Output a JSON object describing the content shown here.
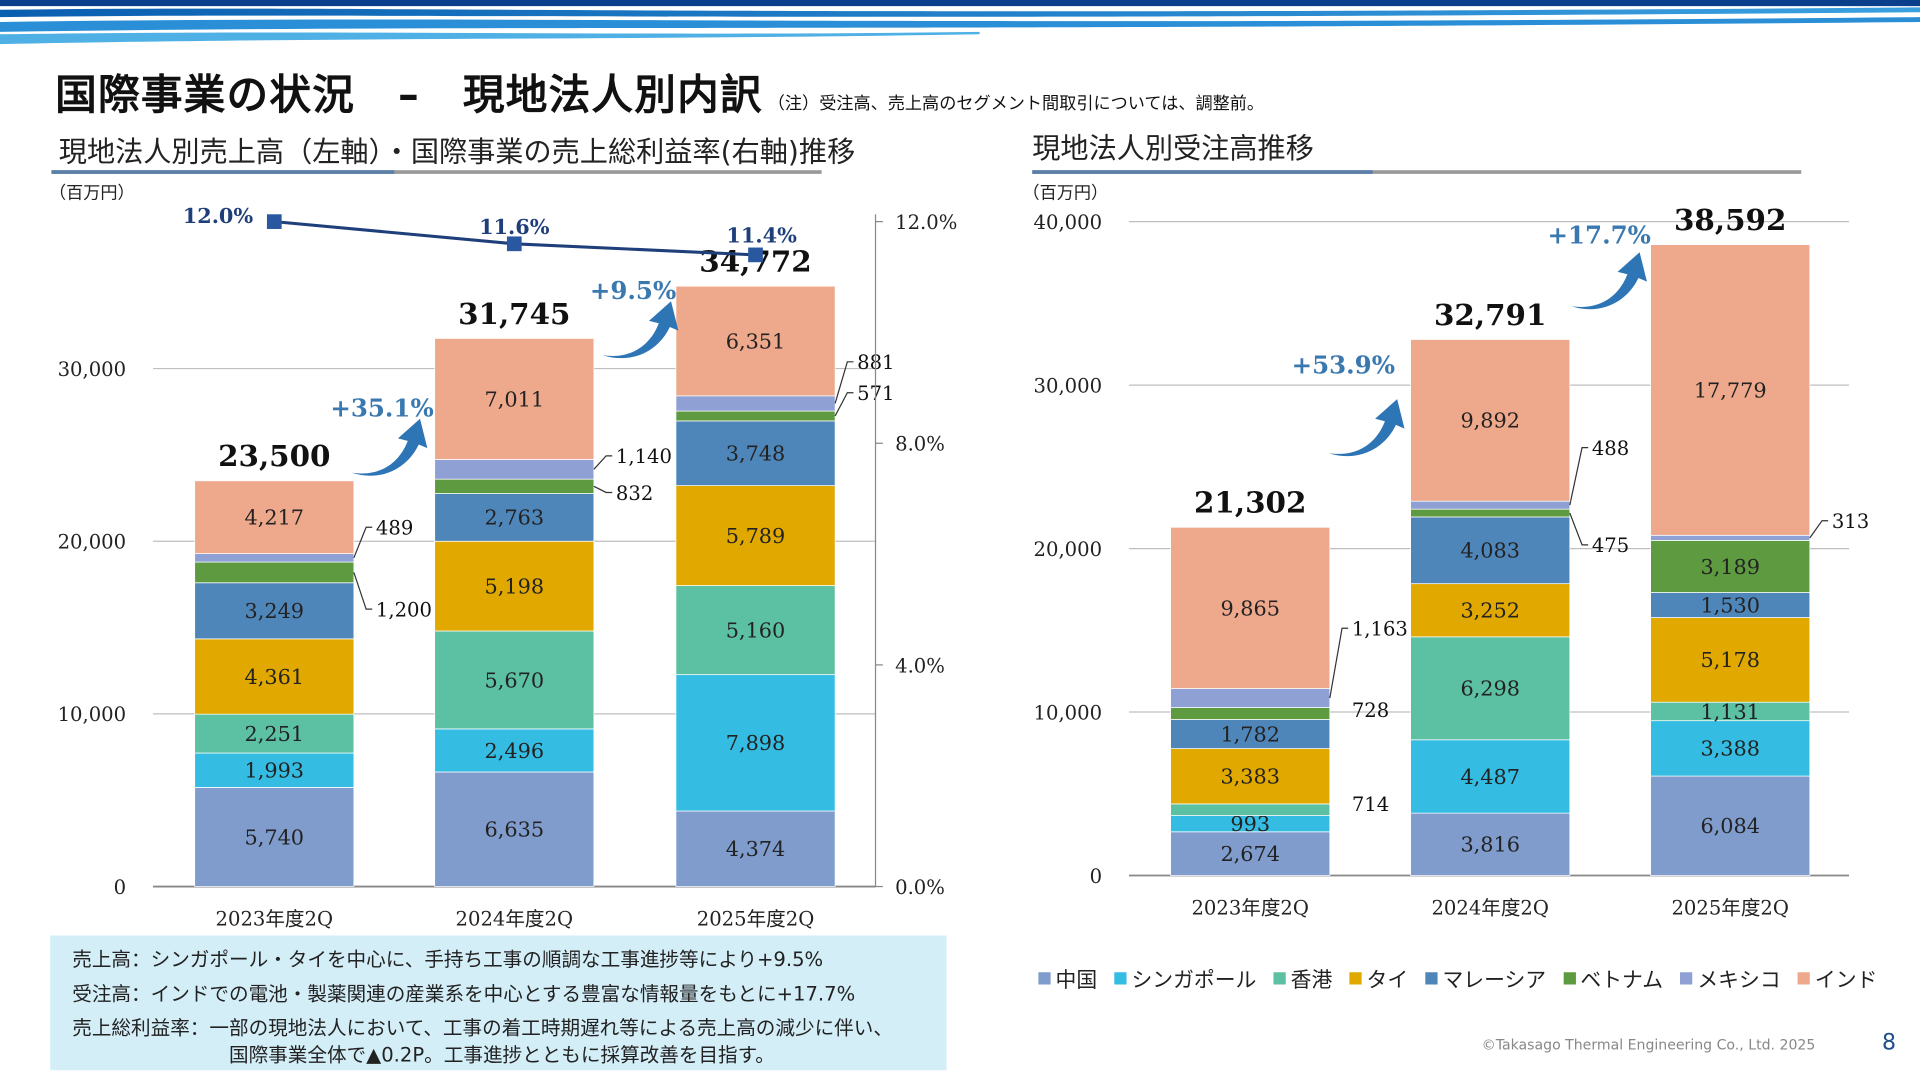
{
  "header": {
    "title": "国際事業の状況　–　現地法人別内訳",
    "note": "（注）受注高、売上高のセグメント間取引については、調整前。"
  },
  "left_panel": {
    "subtitle": "現地法人別売上高（左軸）・国際事業の売上総利益率(右軸)推移",
    "unit": "（百万円）"
  },
  "right_panel": {
    "subtitle": "現地法人別受注高推移",
    "unit": "（百万円）"
  },
  "colors": {
    "中国": "#7f9ccc",
    "シンガポール": "#35bce2",
    "香港": "#5cc0a2",
    "タイ": "#e1a800",
    "マレーシア": "#4f86b9",
    "ベトナム": "#5e9a40",
    "メキシコ": "#8fa0d4",
    "インド": "#eea88c",
    "line": "#1f3f7a",
    "growth": "#2e75b6"
  },
  "chart_data": [
    {
      "type": "bar",
      "stacked": true,
      "title": "現地法人別売上高（左軸）・国際事業の売上総利益率(右軸)推移",
      "categories": [
        "2023年度2Q",
        "2024年度2Q",
        "2025年度2Q"
      ],
      "ylabel": "（百万円）",
      "ylim": [
        0,
        30000
      ],
      "yticks": [
        "0",
        "10,000",
        "20,000",
        "30,000"
      ],
      "y2lim": [
        0,
        12
      ],
      "y2ticks": [
        "0.0%",
        "4.0%",
        "8.0%",
        "12.0%"
      ],
      "series": [
        {
          "name": "中国",
          "values": [
            5740,
            6635,
            4374
          ]
        },
        {
          "name": "シンガポール",
          "values": [
            1993,
            2496,
            7898
          ]
        },
        {
          "name": "香港",
          "values": [
            2251,
            5670,
            5160
          ]
        },
        {
          "name": "タイ",
          "values": [
            4361,
            5198,
            5789
          ]
        },
        {
          "name": "マレーシア",
          "values": [
            3249,
            2763,
            3748
          ]
        },
        {
          "name": "ベトナム",
          "values": [
            1200,
            832,
            571
          ]
        },
        {
          "name": "メキシコ",
          "values": [
            489,
            1140,
            881
          ]
        },
        {
          "name": "インド",
          "values": [
            4217,
            7011,
            6351
          ]
        }
      ],
      "totals": [
        "23,500",
        "31,745",
        "34,772"
      ],
      "growth": [
        "+35.1%",
        "+9.5%"
      ],
      "line": {
        "name": "売上総利益率",
        "values": [
          12.0,
          11.6,
          11.4
        ],
        "labels": [
          "12.0%",
          "11.6%",
          "11.4%"
        ]
      }
    },
    {
      "type": "bar",
      "stacked": true,
      "title": "現地法人別受注高推移",
      "categories": [
        "2023年度2Q",
        "2024年度2Q",
        "2025年度2Q"
      ],
      "ylabel": "（百万円）",
      "ylim": [
        0,
        40000
      ],
      "yticks": [
        "0",
        "10,000",
        "20,000",
        "30,000",
        "40,000"
      ],
      "series": [
        {
          "name": "中国",
          "values": [
            2674,
            3816,
            6084
          ]
        },
        {
          "name": "シンガポール",
          "values": [
            993,
            4487,
            3388
          ]
        },
        {
          "name": "香港",
          "values": [
            714,
            6298,
            1131
          ]
        },
        {
          "name": "タイ",
          "values": [
            3383,
            3252,
            5178
          ]
        },
        {
          "name": "マレーシア",
          "values": [
            1782,
            4083,
            1530
          ]
        },
        {
          "name": "ベトナム",
          "values": [
            728,
            475,
            3189
          ]
        },
        {
          "name": "メキシコ",
          "values": [
            1163,
            488,
            313
          ]
        },
        {
          "name": "インド",
          "values": [
            9865,
            9892,
            17779
          ]
        }
      ],
      "totals": [
        "21,302",
        "32,791",
        "38,592"
      ],
      "growth": [
        "+53.9%",
        "+17.7%"
      ]
    }
  ],
  "notes": [
    "売上高：シンガポール・タイを中心に、手持ち工事の順調な工事進捗等により+9.5%",
    "受注高：インドでの電池・製薬関連の産業系を中心とする豊富な情報量をもとに+17.7%",
    "売上総利益率：一部の現地法人において、工事の着工時期遅れ等による売上高の減少に伴い、",
    "国際事業全体で▲0.2P。工事進捗とともに採算改善を目指す。"
  ],
  "legend": [
    "中国",
    "シンガポール",
    "香港",
    "タイ",
    "マレーシア",
    "ベトナム",
    "メキシコ",
    "インド"
  ],
  "footer": {
    "copyright": "©Takasago Thermal Engineering Co., Ltd. 2025",
    "page": "8"
  }
}
